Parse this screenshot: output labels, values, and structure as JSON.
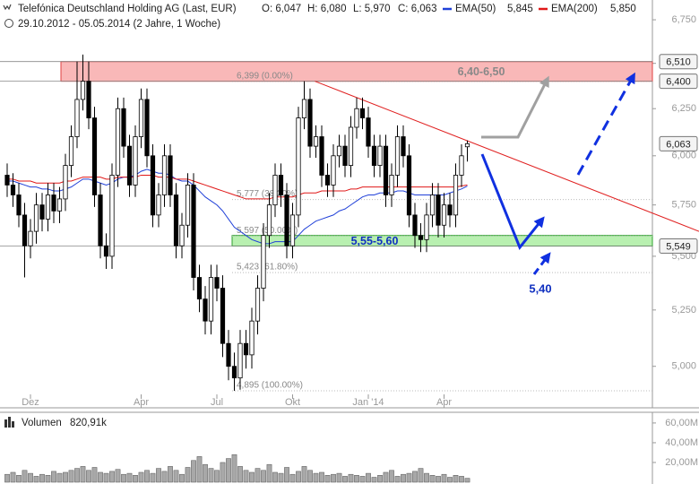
{
  "header": {
    "title": "Telefónica Deutschland Holding AG (Last, EUR)",
    "ohlc": [
      "O: 6,047",
      "H: 6,080",
      "L: 5,970",
      "C: 6,063"
    ],
    "period": "29.10.2012 - 05.05.2014 (2 Jahre, 1 Woche)"
  },
  "chart_data": [
    {
      "type": "candlestick",
      "categories": [
        null,
        null,
        null,
        null,
        "Dez",
        null,
        null,
        null,
        null,
        null,
        null,
        null,
        null,
        null,
        null,
        null,
        null,
        null,
        null,
        null,
        null,
        null,
        null,
        "Apr",
        null,
        null,
        null,
        null,
        null,
        null,
        null,
        null,
        null,
        null,
        null,
        null,
        "Jul",
        null,
        null,
        null,
        null,
        null,
        null,
        null,
        null,
        null,
        null,
        null,
        null,
        "Okt",
        null,
        null,
        null,
        null,
        null,
        null,
        null,
        null,
        null,
        null,
        null,
        null,
        "Jan '14",
        null,
        null,
        null,
        null,
        null,
        null,
        null,
        null,
        null,
        null,
        null,
        null,
        "Apr",
        null,
        null,
        null,
        null
      ],
      "open": [
        5.9,
        5.85,
        5.8,
        5.7,
        5.55,
        5.62,
        5.75,
        5.68,
        5.8,
        5.72,
        5.78,
        5.95,
        6.1,
        6.3,
        6.4,
        6.2,
        5.8,
        5.55,
        5.5,
        5.9,
        6.25,
        6.05,
        5.85,
        6.1,
        6.3,
        6.0,
        5.7,
        5.8,
        6.0,
        5.8,
        5.55,
        5.65,
        5.85,
        5.4,
        5.3,
        5.2,
        5.4,
        5.35,
        5.1,
        5.0,
        4.95,
        5.1,
        5.05,
        5.2,
        5.35,
        5.6,
        5.75,
        5.9,
        5.8,
        5.55,
        5.7,
        6.2,
        6.3,
        6.05,
        6.1,
        5.9,
        5.85,
        6.0,
        6.05,
        5.95,
        6.15,
        6.25,
        6.2,
        6.05,
        5.95,
        6.05,
        5.8,
        5.9,
        6.1,
        6.0,
        5.7,
        5.6,
        5.58,
        5.7,
        5.8,
        5.65,
        5.75,
        5.7,
        5.9,
        6.047
      ],
      "high": [
        5.96,
        5.91,
        5.86,
        5.76,
        5.68,
        5.81,
        5.81,
        5.86,
        5.86,
        5.84,
        6.01,
        6.16,
        6.51,
        6.55,
        6.51,
        6.26,
        5.86,
        5.61,
        5.96,
        6.31,
        6.31,
        6.11,
        6.16,
        6.36,
        6.36,
        6.06,
        5.86,
        6.06,
        6.06,
        5.86,
        5.71,
        5.91,
        5.91,
        5.46,
        5.36,
        5.46,
        5.46,
        5.41,
        5.16,
        5.06,
        5.16,
        5.16,
        5.26,
        5.41,
        5.66,
        5.81,
        5.96,
        5.96,
        5.86,
        5.76,
        6.26,
        6.4,
        6.36,
        6.16,
        6.16,
        5.96,
        6.06,
        6.11,
        6.11,
        6.21,
        6.31,
        6.31,
        6.26,
        6.11,
        6.11,
        6.11,
        5.96,
        6.16,
        6.16,
        6.06,
        5.76,
        5.66,
        5.76,
        5.86,
        5.86,
        5.81,
        5.81,
        5.96,
        6.06,
        6.08
      ],
      "low": [
        5.79,
        5.74,
        5.64,
        5.4,
        5.49,
        5.56,
        5.62,
        5.62,
        5.66,
        5.66,
        5.72,
        5.89,
        6.04,
        6.24,
        6.14,
        5.74,
        5.49,
        5.44,
        5.44,
        5.84,
        5.99,
        5.79,
        5.79,
        6.04,
        5.94,
        5.64,
        5.64,
        5.74,
        5.74,
        5.49,
        5.49,
        5.59,
        5.34,
        5.24,
        5.14,
        5.14,
        5.29,
        5.04,
        4.94,
        4.895,
        4.9,
        4.99,
        4.99,
        5.14,
        5.29,
        5.54,
        5.69,
        5.74,
        5.49,
        5.49,
        5.64,
        6.14,
        5.99,
        5.99,
        5.84,
        5.79,
        5.79,
        5.94,
        5.89,
        5.89,
        6.09,
        6.14,
        5.99,
        5.89,
        5.89,
        5.74,
        5.74,
        5.84,
        5.94,
        5.64,
        5.54,
        5.52,
        5.52,
        5.64,
        5.59,
        5.59,
        5.64,
        5.64,
        5.84,
        5.97
      ],
      "close": [
        5.85,
        5.8,
        5.7,
        5.55,
        5.62,
        5.75,
        5.68,
        5.8,
        5.72,
        5.78,
        5.95,
        6.1,
        6.3,
        6.4,
        6.2,
        5.8,
        5.55,
        5.5,
        5.9,
        6.25,
        6.05,
        5.85,
        6.1,
        6.3,
        6.0,
        5.7,
        5.8,
        6.0,
        5.8,
        5.55,
        5.65,
        5.85,
        5.4,
        5.3,
        5.2,
        5.4,
        5.35,
        5.1,
        5.0,
        4.95,
        5.1,
        5.05,
        5.2,
        5.35,
        5.6,
        5.75,
        5.9,
        5.8,
        5.55,
        5.7,
        6.2,
        6.3,
        6.05,
        6.1,
        5.9,
        5.85,
        6.0,
        6.05,
        5.95,
        6.15,
        6.25,
        6.2,
        6.05,
        5.95,
        6.05,
        5.8,
        5.9,
        6.1,
        6.0,
        5.7,
        5.6,
        5.58,
        5.7,
        5.8,
        5.65,
        5.75,
        5.7,
        5.9,
        6.0,
        6.063
      ],
      "up_color": "#ffffff",
      "down_color": "#000000",
      "ylim": [
        4.88,
        6.84
      ],
      "log": true,
      "yticks": [
        {
          "value": 5.0,
          "label": "5,000"
        },
        {
          "value": 5.25,
          "label": "5,250"
        },
        {
          "value": 5.5,
          "label": "5,500"
        },
        {
          "value": 5.75,
          "label": "5,750"
        },
        {
          "value": 6.0,
          "label": "6,000"
        },
        {
          "value": 6.25,
          "label": "6,250"
        },
        {
          "value": 6.5,
          "label": "6,500"
        },
        {
          "value": 6.75,
          "label": "6,750"
        }
      ],
      "series": [
        {
          "name": "EMA(50)",
          "color": "#2040d8",
          "legend_label": "5,845",
          "values": [
            5.87,
            5.87,
            5.86,
            5.85,
            5.84,
            5.84,
            5.83,
            5.83,
            5.82,
            5.82,
            5.83,
            5.84,
            5.86,
            5.88,
            5.88,
            5.87,
            5.86,
            5.85,
            5.86,
            5.88,
            5.89,
            5.89,
            5.9,
            5.92,
            5.93,
            5.92,
            5.91,
            5.91,
            5.9,
            5.88,
            5.87,
            5.87,
            5.85,
            5.82,
            5.79,
            5.77,
            5.75,
            5.72,
            5.68,
            5.64,
            5.62,
            5.6,
            5.58,
            5.57,
            5.56,
            5.56,
            5.57,
            5.57,
            5.57,
            5.57,
            5.6,
            5.63,
            5.65,
            5.67,
            5.68,
            5.69,
            5.7,
            5.72,
            5.73,
            5.75,
            5.77,
            5.79,
            5.8,
            5.8,
            5.81,
            5.81,
            5.81,
            5.82,
            5.82,
            5.81,
            5.8,
            5.8,
            5.8,
            5.8,
            5.8,
            5.8,
            5.81,
            5.82,
            5.83,
            5.845
          ]
        },
        {
          "name": "EMA(200)",
          "color": "#e01818",
          "legend_label": "5,850",
          "values": [
            5.88,
            5.88,
            5.87,
            5.87,
            5.87,
            5.86,
            5.86,
            5.86,
            5.86,
            5.86,
            5.87,
            5.87,
            5.88,
            5.89,
            5.89,
            5.89,
            5.89,
            5.88,
            5.88,
            5.89,
            5.89,
            5.89,
            5.89,
            5.9,
            5.9,
            5.9,
            5.89,
            5.89,
            5.89,
            5.88,
            5.88,
            5.88,
            5.87,
            5.86,
            5.85,
            5.84,
            5.83,
            5.82,
            5.81,
            5.8,
            5.79,
            5.78,
            5.78,
            5.78,
            5.78,
            5.78,
            5.79,
            5.79,
            5.79,
            5.79,
            5.8,
            5.81,
            5.81,
            5.81,
            5.82,
            5.82,
            5.82,
            5.82,
            5.82,
            5.83,
            5.83,
            5.84,
            5.84,
            5.84,
            5.84,
            5.84,
            5.84,
            5.84,
            5.84,
            5.84,
            5.84,
            5.84,
            5.84,
            5.84,
            5.84,
            5.84,
            5.84,
            5.84,
            5.845,
            5.85
          ]
        }
      ],
      "zones": [
        {
          "low": 6.4,
          "high": 6.51,
          "label": "6,40-6,50",
          "color": "#f9b8b8",
          "border": "#e04040",
          "text_color": "#888888"
        },
        {
          "low": 5.549,
          "high": 5.6,
          "label": "5,55-5,60",
          "color": "#b8f0b0",
          "border": "#30a030",
          "text_color": "#1030c0"
        }
      ],
      "fib_levels": [
        {
          "value": 6.399,
          "label": "6,399 (0.00%)"
        },
        {
          "value": 5.777,
          "label": "5,777 (38.20%)"
        },
        {
          "value": 5.597,
          "label": "5,597 (50.00%)"
        },
        {
          "value": 5.423,
          "label": "5,423 (61.80%)"
        },
        {
          "value": 4.895,
          "label": "4,895 (100.00%)"
        }
      ],
      "price_tags": [
        {
          "value": 6.51,
          "label": "6,510",
          "line": true
        },
        {
          "value": 6.4,
          "label": "6,400",
          "line": true
        },
        {
          "value": 6.063,
          "label": "6,063",
          "line": false
        },
        {
          "value": 5.549,
          "label": "5,549",
          "line": true
        }
      ],
      "trendline": {
        "values": [
          6.4,
          5.62
        ],
        "color": "#e02020"
      },
      "annotation": "5,40"
    },
    {
      "type": "bar",
      "title": "Volumen",
      "subtitle": "820,91k",
      "color": "#a8a8a8",
      "values": [
        8,
        10,
        7,
        12,
        9,
        6,
        8,
        7,
        11,
        9,
        10,
        12,
        14,
        16,
        12,
        15,
        10,
        9,
        11,
        13,
        8,
        9,
        7,
        10,
        12,
        9,
        14,
        11,
        16,
        12,
        8,
        15,
        22,
        26,
        18,
        14,
        12,
        20,
        24,
        28,
        16,
        12,
        10,
        14,
        12,
        18,
        10,
        9,
        15,
        8,
        11,
        16,
        12,
        9,
        10,
        7,
        8,
        9,
        6,
        8,
        7,
        6,
        9,
        5,
        7,
        10,
        12,
        6,
        8,
        9,
        11,
        14,
        9,
        7,
        6,
        8,
        5,
        7,
        6,
        4
      ],
      "ylim": [
        0,
        69
      ],
      "yticks": [
        {
          "value": 20,
          "label": "20,00M"
        },
        {
          "value": 40,
          "label": "40,00M"
        },
        {
          "value": 60,
          "label": "60,00M"
        }
      ]
    }
  ]
}
